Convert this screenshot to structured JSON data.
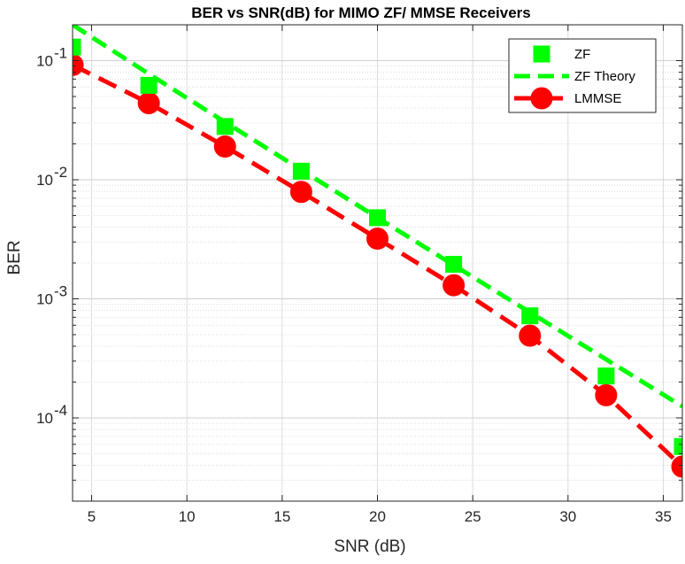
{
  "chart_data": {
    "type": "line",
    "title": "BER vs SNR(dB) for MIMO ZF/ MMSE Receivers",
    "xlabel": "SNR (dB)",
    "ylabel": "BER",
    "xlim": [
      4,
      36
    ],
    "ylim": [
      2e-05,
      0.2
    ],
    "yscale": "log",
    "grid": true,
    "minor_grid": true,
    "legend_position": "top-right",
    "x_ticks": [
      5,
      10,
      15,
      20,
      25,
      30,
      35
    ],
    "x_tick_labels": [
      "5",
      "10",
      "15",
      "20",
      "25",
      "30",
      "35"
    ],
    "y_ticks": [
      0.1,
      0.01,
      0.001,
      0.0001
    ],
    "y_tick_labels": [
      {
        "base": "10",
        "exp": "-1"
      },
      {
        "base": "10",
        "exp": "-2"
      },
      {
        "base": "10",
        "exp": "-3"
      },
      {
        "base": "10",
        "exp": "-4"
      }
    ],
    "series": [
      {
        "name": "ZF",
        "style": "marker",
        "marker": "square",
        "color": "#00ff00",
        "x": [
          4,
          8,
          12,
          16,
          20,
          24,
          28,
          32,
          36
        ],
        "y": [
          0.13,
          0.062,
          0.028,
          0.0118,
          0.0048,
          0.00195,
          0.00072,
          0.000225,
          5.75e-05
        ]
      },
      {
        "name": "ZF Theory",
        "style": "dashed-line",
        "color": "#00ff00",
        "x": [
          4,
          8,
          12,
          16,
          20,
          24,
          28,
          32,
          36
        ],
        "y": [
          0.2,
          0.0775,
          0.0305,
          0.0121,
          0.0048,
          0.00192,
          0.00077,
          0.00031,
          0.000125
        ]
      },
      {
        "name": "LMMSE",
        "style": "dashed-line-marker",
        "marker": "circle",
        "color": "#ff0000",
        "x": [
          4,
          8,
          12,
          16,
          20,
          24,
          28,
          32,
          36
        ],
        "y": [
          0.092,
          0.044,
          0.019,
          0.0079,
          0.0032,
          0.0013,
          0.00049,
          0.000155,
          3.9e-05
        ]
      }
    ]
  }
}
